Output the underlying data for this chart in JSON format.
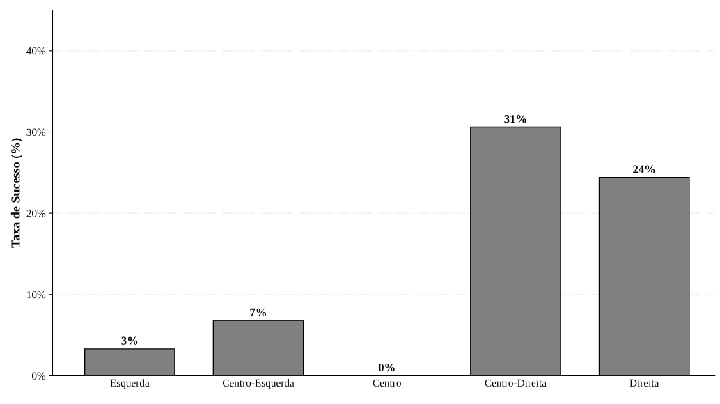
{
  "chart_data": {
    "type": "bar",
    "ylabel": "Taxa de Sucesso (%)",
    "categories": [
      "Esquerda",
      "Centro-Esquerda",
      "Centro",
      "Centro-Direita",
      "Direita"
    ],
    "values": [
      3.3,
      6.8,
      0,
      30.6,
      24.4
    ],
    "value_labels": [
      "3%",
      "7%",
      "0%",
      "31%",
      "24%"
    ],
    "color": "#808080",
    "ylim": [
      0,
      45
    ],
    "yticks": [
      {
        "value": 0,
        "label": "0%"
      },
      {
        "value": 10,
        "label": "10%"
      },
      {
        "value": 20,
        "label": "20%"
      },
      {
        "value": 30,
        "label": "30%"
      },
      {
        "value": 40,
        "label": "40%"
      }
    ],
    "grid": "y"
  }
}
